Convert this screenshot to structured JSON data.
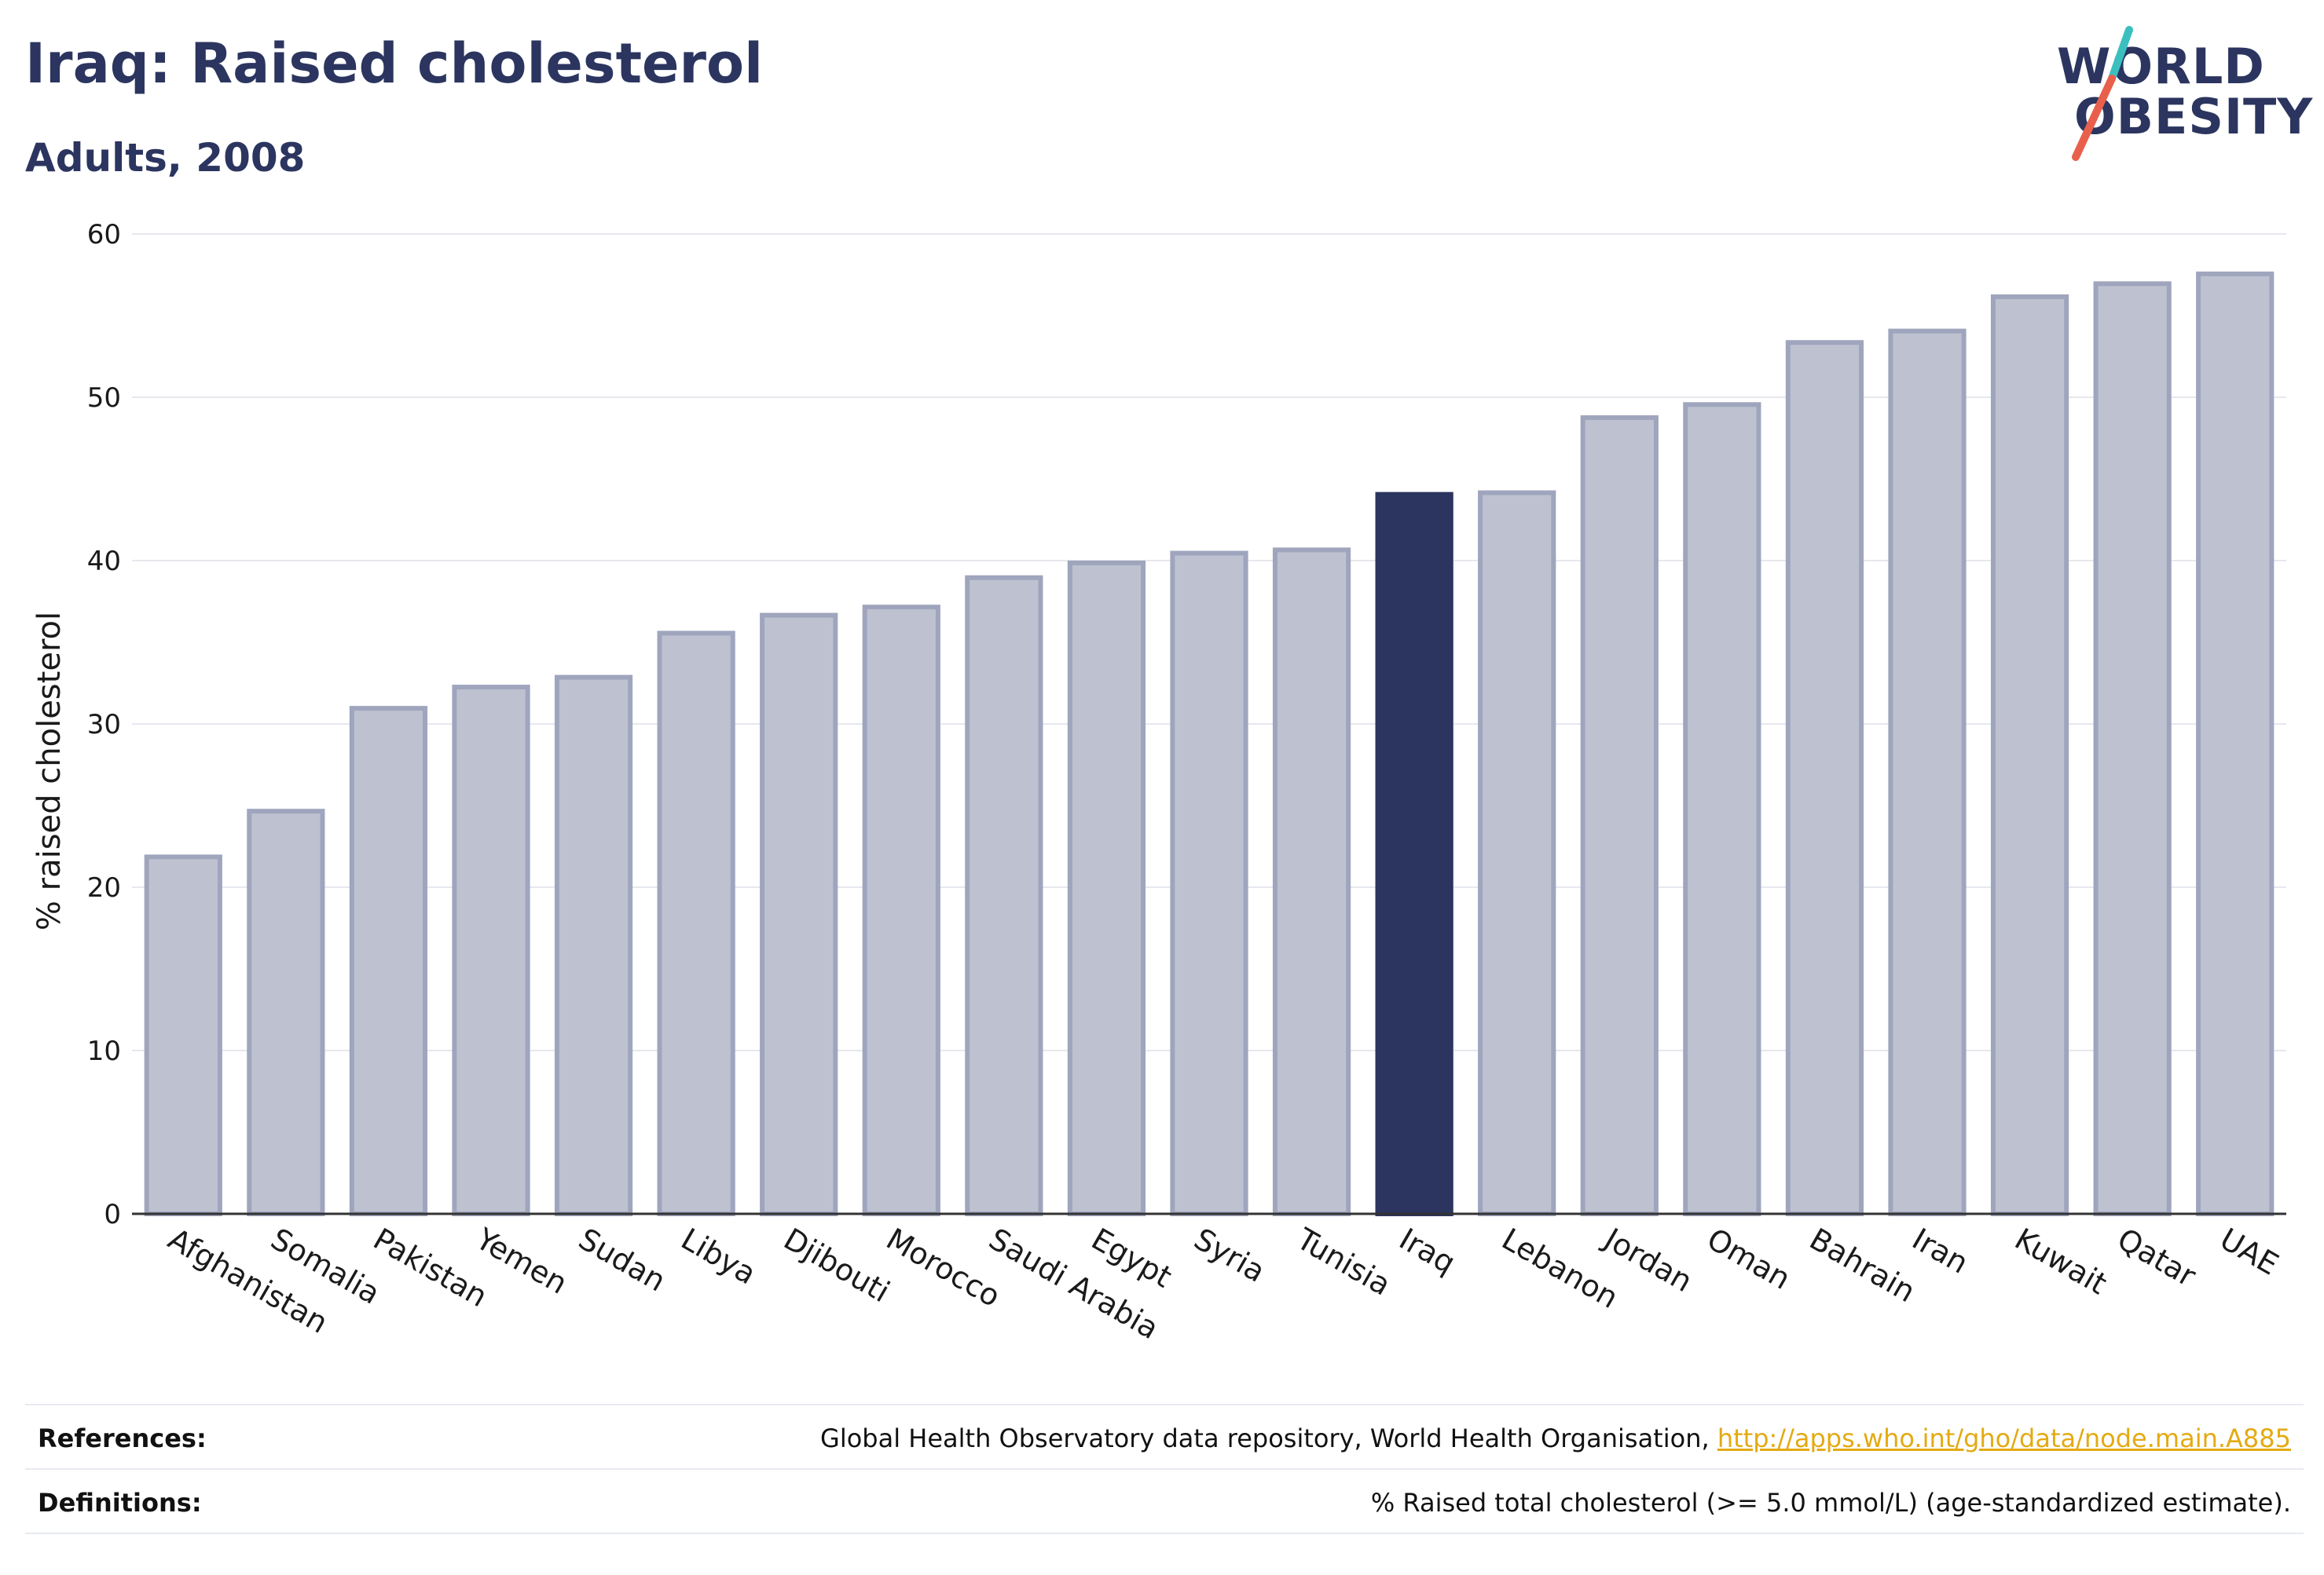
{
  "header": {
    "title": "Iraq: Raised cholesterol",
    "subtitle": "Adults, 2008"
  },
  "logo": {
    "line1": "WORLD",
    "line2": "OBESITY",
    "slash_colors": [
      "#3bbfbf",
      "#e8604c"
    ]
  },
  "colors": {
    "bar_default": "#bec2d0",
    "bar_default_border": "#9fa5bd",
    "bar_highlight": "#2b355f",
    "grid": "#e6e8ee",
    "link": "#e3aa12"
  },
  "chart_data": {
    "type": "bar",
    "ylabel": "% raised cholesterol",
    "ylim": [
      0,
      60
    ],
    "yticks": [
      0,
      10,
      20,
      30,
      40,
      50,
      60
    ],
    "grid": true,
    "highlight": "Iraq",
    "categories": [
      "Afghanistan",
      "Somalia",
      "Pakistan",
      "Yemen",
      "Sudan",
      "Libya",
      "Djibouti",
      "Morocco",
      "Saudi Arabia",
      "Egypt",
      "Syria",
      "Tunisia",
      "Iraq",
      "Lebanon",
      "Jordan",
      "Oman",
      "Bahrain",
      "Iran",
      "Kuwait",
      "Qatar",
      "UAE"
    ],
    "values": [
      22.0,
      24.8,
      31.1,
      32.4,
      33.0,
      35.7,
      36.8,
      37.3,
      39.1,
      40.0,
      40.6,
      40.8,
      44.2,
      44.3,
      48.9,
      49.7,
      53.5,
      54.2,
      56.3,
      57.1,
      57.7
    ]
  },
  "footer": {
    "references_label": "References:",
    "references_text": "Global Health Observatory data repository, World Health Organisation, ",
    "references_link": "http://apps.who.int/gho/data/node.main.A885",
    "definitions_label": "Definitions:",
    "definitions_text": "% Raised total cholesterol (>= 5.0 mmol/L) (age-standardized estimate)."
  }
}
